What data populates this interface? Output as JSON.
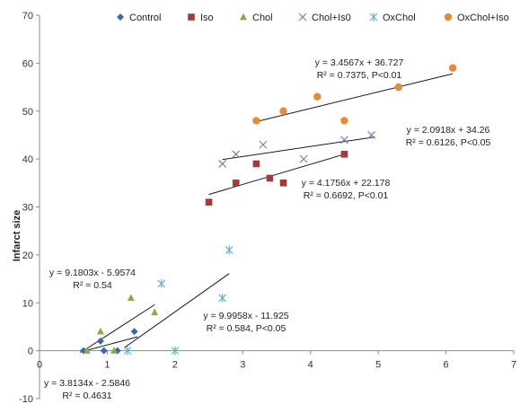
{
  "chart_data": {
    "type": "scatter",
    "title": "",
    "xlabel": "",
    "ylabel": "Infarct size",
    "xlim": [
      0,
      7
    ],
    "ylim": [
      -10,
      70
    ],
    "xticks": [
      "0",
      "1",
      "2",
      "3",
      "4",
      "5",
      "6",
      "7"
    ],
    "yticks": [
      "-10",
      "0",
      "10",
      "20",
      "30",
      "40",
      "50",
      "60",
      "70"
    ],
    "grid": false,
    "legend_position": "top",
    "series": [
      {
        "name": "Control",
        "marker": "diamond",
        "color": "#3a67b0",
        "points": [
          [
            0.65,
            0
          ],
          [
            0.9,
            2
          ],
          [
            0.95,
            0
          ],
          [
            1.15,
            0
          ],
          [
            1.4,
            4
          ]
        ]
      },
      {
        "name": "Iso",
        "marker": "square",
        "color": "#a23b3b",
        "points": [
          [
            2.5,
            31
          ],
          [
            2.9,
            35
          ],
          [
            3.2,
            39
          ],
          [
            3.4,
            36
          ],
          [
            3.6,
            35
          ],
          [
            4.5,
            41
          ]
        ]
      },
      {
        "name": "Chol",
        "marker": "triangle",
        "color": "#8aab4a",
        "points": [
          [
            0.7,
            0
          ],
          [
            0.9,
            4
          ],
          [
            1.1,
            0
          ],
          [
            1.35,
            11
          ],
          [
            1.7,
            8
          ]
        ]
      },
      {
        "name": "Chol+Is0",
        "marker": "x",
        "color": "#8878b0",
        "points": [
          [
            2.7,
            39
          ],
          [
            2.9,
            41
          ],
          [
            3.3,
            43
          ],
          [
            3.9,
            40
          ],
          [
            4.5,
            44
          ],
          [
            4.9,
            45
          ]
        ]
      },
      {
        "name": "OxChol",
        "marker": "asterisk",
        "color": "#5fb3d6",
        "points": [
          [
            1.3,
            0
          ],
          [
            1.8,
            14
          ],
          [
            2.0,
            0
          ],
          [
            2.7,
            11
          ],
          [
            2.8,
            21
          ]
        ]
      },
      {
        "name": "OxChol+Iso",
        "marker": "circle",
        "color": "#e6893a",
        "points": [
          [
            3.2,
            48
          ],
          [
            3.6,
            50
          ],
          [
            4.1,
            53
          ],
          [
            4.5,
            48
          ],
          [
            5.3,
            55
          ],
          [
            6.1,
            59
          ]
        ]
      }
    ],
    "trendlines": [
      {
        "series": "Control",
        "x": [
          0.6,
          1.45
        ],
        "y": [
          -0.3,
          2.9
        ]
      },
      {
        "series": "Iso",
        "x": [
          2.5,
          4.5
        ],
        "y": [
          32.6,
          41.0
        ]
      },
      {
        "series": "Chol",
        "x": [
          0.65,
          1.7
        ],
        "y": [
          0.0,
          9.6
        ]
      },
      {
        "series": "Chol+Is0",
        "x": [
          2.7,
          4.95
        ],
        "y": [
          39.9,
          44.6
        ]
      },
      {
        "series": "OxChol",
        "x": [
          1.25,
          2.8
        ],
        "y": [
          0.6,
          16.1
        ]
      },
      {
        "series": "OxChol+Iso",
        "x": [
          3.2,
          6.1
        ],
        "y": [
          47.8,
          57.8
        ]
      }
    ],
    "annotations": [
      {
        "lines": [
          "y = 3.4567x + 36.727",
          "R² = 0.7375, P<0.01"
        ]
      },
      {
        "lines": [
          "y = 2.0918x + 34.26",
          "R² = 0.6126, P<0.05"
        ]
      },
      {
        "lines": [
          "y = 4.1756x + 22.178",
          "R² = 0.6692, P<0.01"
        ]
      },
      {
        "lines": [
          "y = 9.1803x - 5.9574",
          "R² = 0.54"
        ]
      },
      {
        "lines": [
          "y = 9.9958x - 11.925",
          "R² = 0.584, P<0.05"
        ]
      },
      {
        "lines": [
          "y = 3.8134x - 2.5846",
          "R² = 0.4631"
        ]
      }
    ]
  }
}
